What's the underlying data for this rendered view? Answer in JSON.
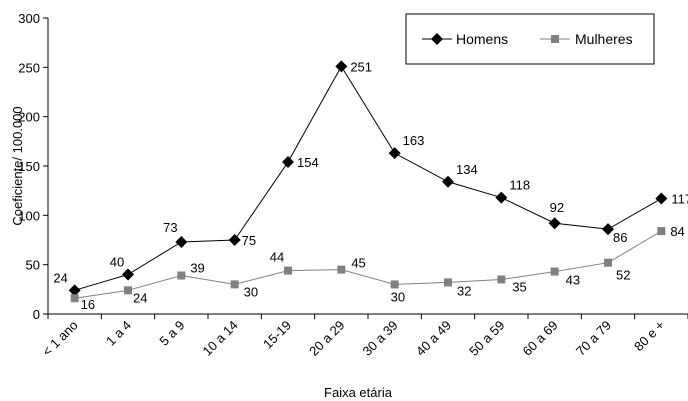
{
  "chart_data": {
    "type": "line",
    "categories": [
      "< 1 ano",
      "1 a 4",
      "5 a 9",
      "10 a 14",
      "15-19",
      "20 a 29",
      "30 a 39",
      "40 a 49",
      "50 a 59",
      "60 a 69",
      "70 a 79",
      "80 e +"
    ],
    "series": [
      {
        "name": "Homens",
        "values": [
          24,
          40,
          73,
          75,
          154,
          251,
          163,
          134,
          118,
          92,
          86,
          117
        ],
        "color": "#000000",
        "marker": "diamond"
      },
      {
        "name": "Mulheres",
        "values": [
          16,
          24,
          39,
          30,
          44,
          45,
          30,
          32,
          35,
          43,
          52,
          84
        ],
        "color": "#808080",
        "marker": "square"
      }
    ],
    "xlabel": "Faixa etária",
    "ylabel": "Coeficiente/ 100.000",
    "ylim": [
      0,
      300
    ],
    "yticks": [
      0,
      50,
      100,
      150,
      200,
      250,
      300
    ],
    "grid": false,
    "legend_position": "top-right"
  }
}
